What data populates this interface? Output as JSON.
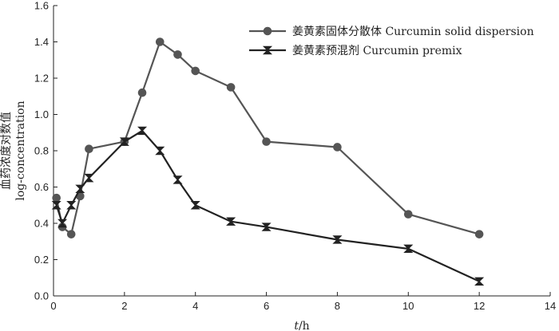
{
  "chart_data": {
    "type": "line",
    "xlabel": "t/h",
    "ylabel_cn": "血药浓度对数值",
    "ylabel_en": "log-concentration",
    "xlim": [
      0,
      14
    ],
    "ylim": [
      0,
      1.6
    ],
    "xticks": [
      "0",
      "2",
      "4",
      "6",
      "8",
      "10",
      "12",
      "14"
    ],
    "yticks": [
      "0.0",
      "0.2",
      "0.4",
      "0.6",
      "0.8",
      "1.0",
      "1.2",
      "1.4",
      "1.6"
    ],
    "grid": false,
    "legend_position": "top-right",
    "series": [
      {
        "name": "姜黄素固体分散体 Curcumin solid dispersion",
        "marker": "circle",
        "color": "#555555",
        "x": [
          0.083,
          0.25,
          0.5,
          0.75,
          1,
          2,
          2.5,
          3,
          3.5,
          4,
          5,
          6,
          8,
          10,
          12
        ],
        "y": [
          0.54,
          0.38,
          0.34,
          0.55,
          0.81,
          0.85,
          1.12,
          1.4,
          1.33,
          1.24,
          1.15,
          0.85,
          0.82,
          0.45,
          0.34
        ]
      },
      {
        "name": "姜黄素预混剂 Curcumin premix",
        "marker": "bowtie",
        "color": "#222222",
        "x": [
          0.083,
          0.25,
          0.5,
          0.75,
          1,
          2,
          2.5,
          3,
          3.5,
          4,
          5,
          6,
          8,
          10,
          12
        ],
        "y": [
          0.5,
          0.4,
          0.5,
          0.59,
          0.65,
          0.85,
          0.91,
          0.8,
          0.64,
          0.5,
          0.41,
          0.38,
          0.31,
          0.26,
          0.08
        ]
      }
    ]
  }
}
